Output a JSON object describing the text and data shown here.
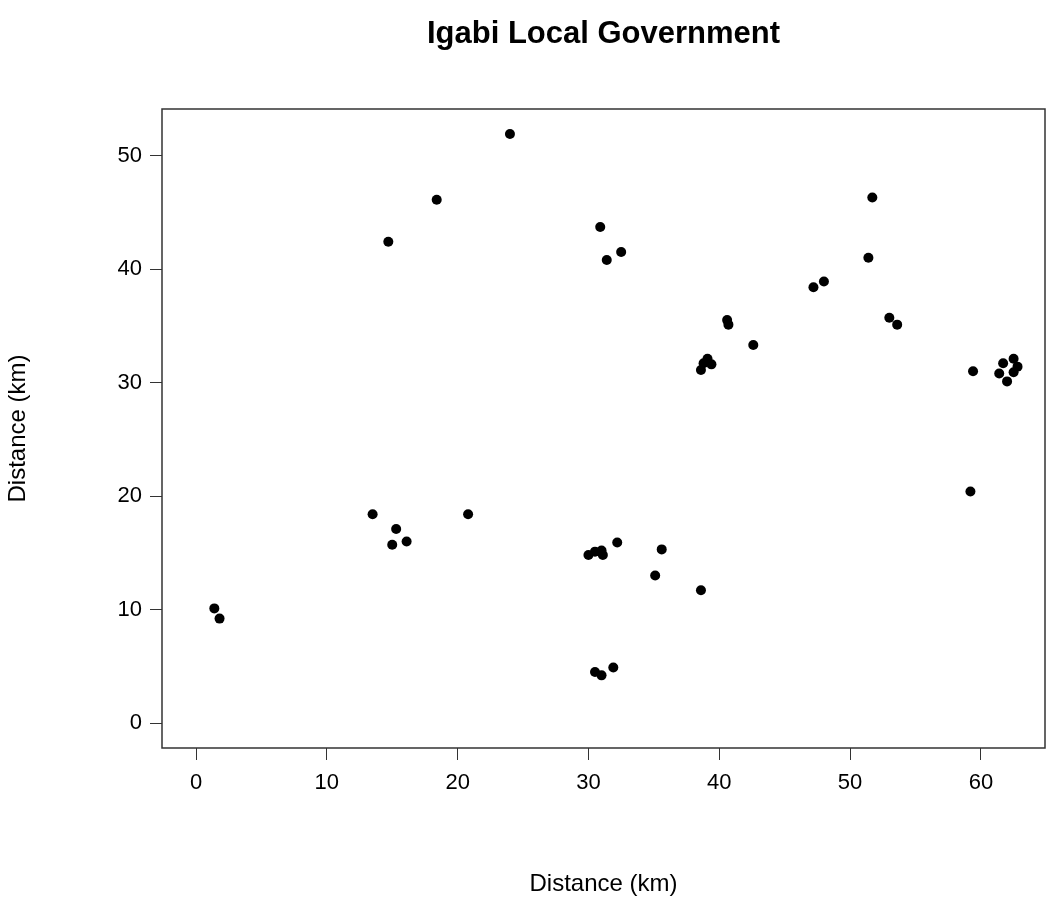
{
  "chart_data": {
    "type": "scatter",
    "title": "Igabi Local Government",
    "xlabel": "Distance (km)",
    "ylabel": "Distance (km)",
    "x": [
      1.4,
      1.8,
      13.5,
      15.3,
      15.0,
      16.1,
      20.8,
      14.7,
      18.4,
      24.0,
      30.9,
      31.4,
      32.5,
      30.5,
      31.0,
      31.9,
      30.0,
      30.5,
      31.0,
      31.1,
      32.2,
      35.6,
      35.1,
      38.6,
      59.2,
      40.6,
      40.7,
      38.6,
      38.8,
      39.1,
      39.4,
      42.6,
      47.2,
      48.0,
      51.4,
      51.7,
      53.0,
      53.6,
      59.4,
      61.4,
      61.7,
      62.5,
      62.8,
      62.5,
      62.0
    ],
    "values": [
      10.1,
      9.2,
      18.4,
      17.1,
      15.7,
      16.0,
      18.4,
      42.4,
      46.1,
      51.9,
      43.7,
      40.8,
      41.5,
      4.5,
      4.2,
      4.9,
      14.8,
      15.1,
      15.2,
      14.8,
      15.9,
      15.3,
      13.0,
      11.7,
      20.4,
      35.5,
      35.1,
      31.1,
      31.7,
      32.1,
      31.6,
      33.3,
      38.4,
      38.9,
      41.0,
      46.3,
      35.7,
      35.1,
      31.0,
      30.8,
      31.7,
      32.1,
      31.4,
      30.9,
      30.1
    ],
    "color": "#000000",
    "marker": "circle",
    "xlim": [
      -2.6,
      64.9
    ],
    "ylim": [
      -2.2,
      54.1
    ],
    "xticks": [
      0,
      10,
      20,
      30,
      40,
      50,
      60
    ],
    "yticks": [
      0,
      10,
      20,
      30,
      40,
      50
    ],
    "grid": false,
    "legend": false
  }
}
